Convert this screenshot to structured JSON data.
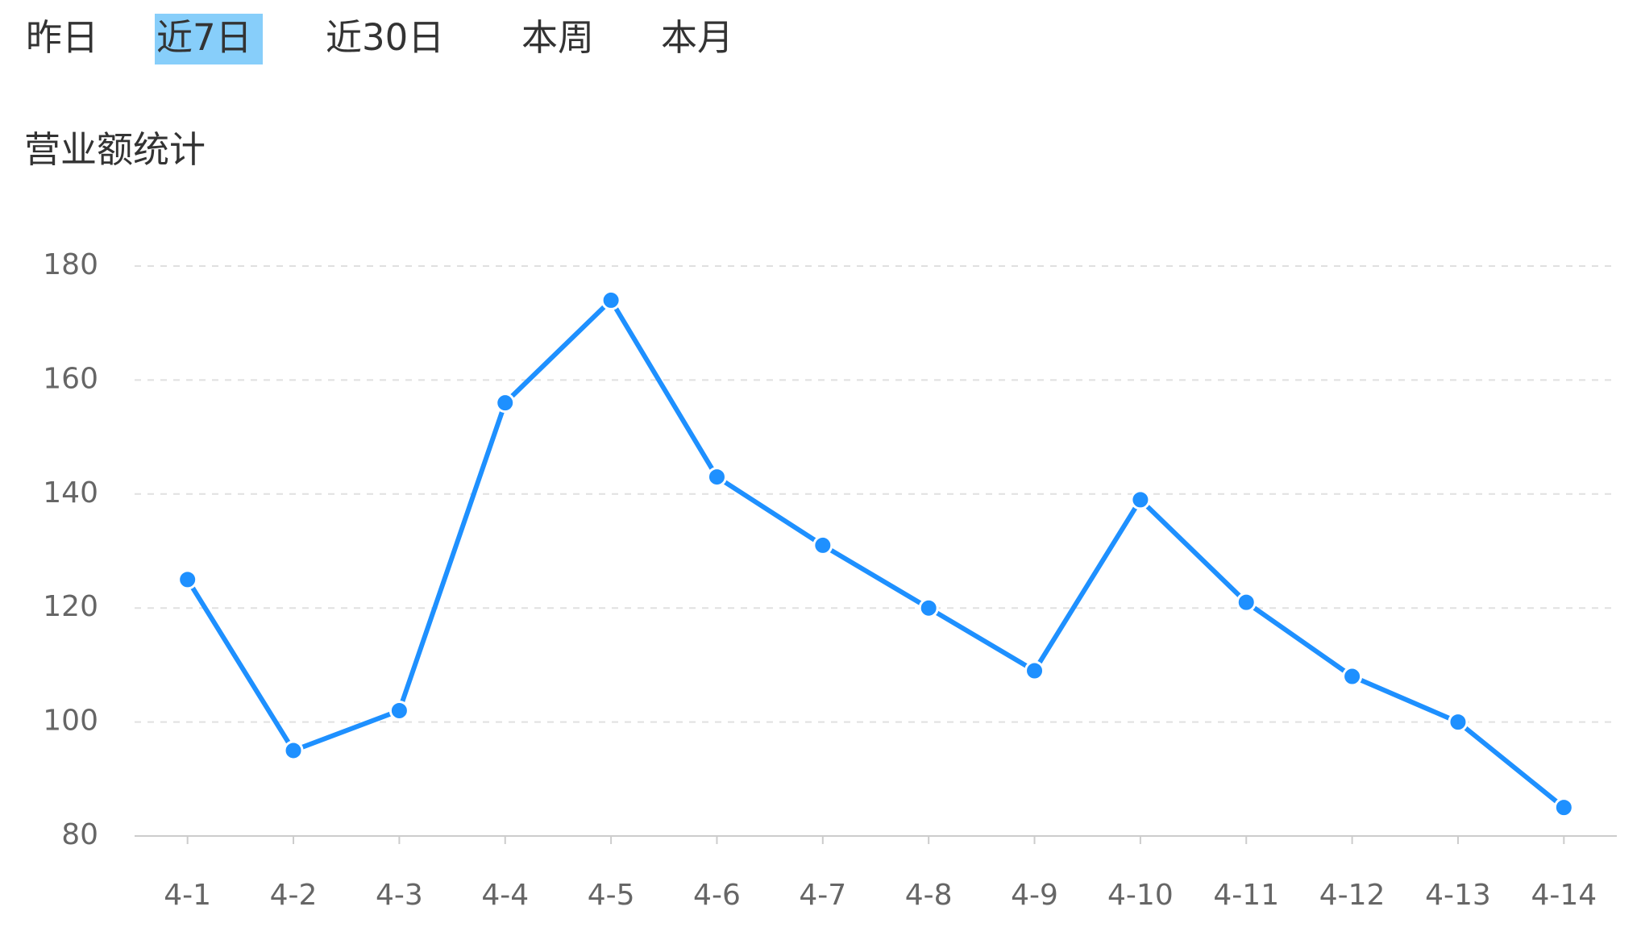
{
  "tabs": {
    "items": [
      "昨日",
      "近7日",
      "近30日",
      "本周",
      "本月"
    ],
    "selected": 1
  },
  "chart_data": {
    "type": "line",
    "title": "营业额统计",
    "categories": [
      "4-1",
      "4-2",
      "4-3",
      "4-4",
      "4-5",
      "4-6",
      "4-7",
      "4-8",
      "4-9",
      "4-10",
      "4-11",
      "4-12",
      "4-13",
      "4-14"
    ],
    "values": [
      125,
      95,
      102,
      156,
      174,
      143,
      131,
      120,
      109,
      139,
      121,
      108,
      100,
      85
    ],
    "color": "#1e90ff",
    "ylim": [
      80,
      180
    ],
    "yticks": [
      80,
      100,
      120,
      140,
      160,
      180
    ],
    "grid": true
  }
}
